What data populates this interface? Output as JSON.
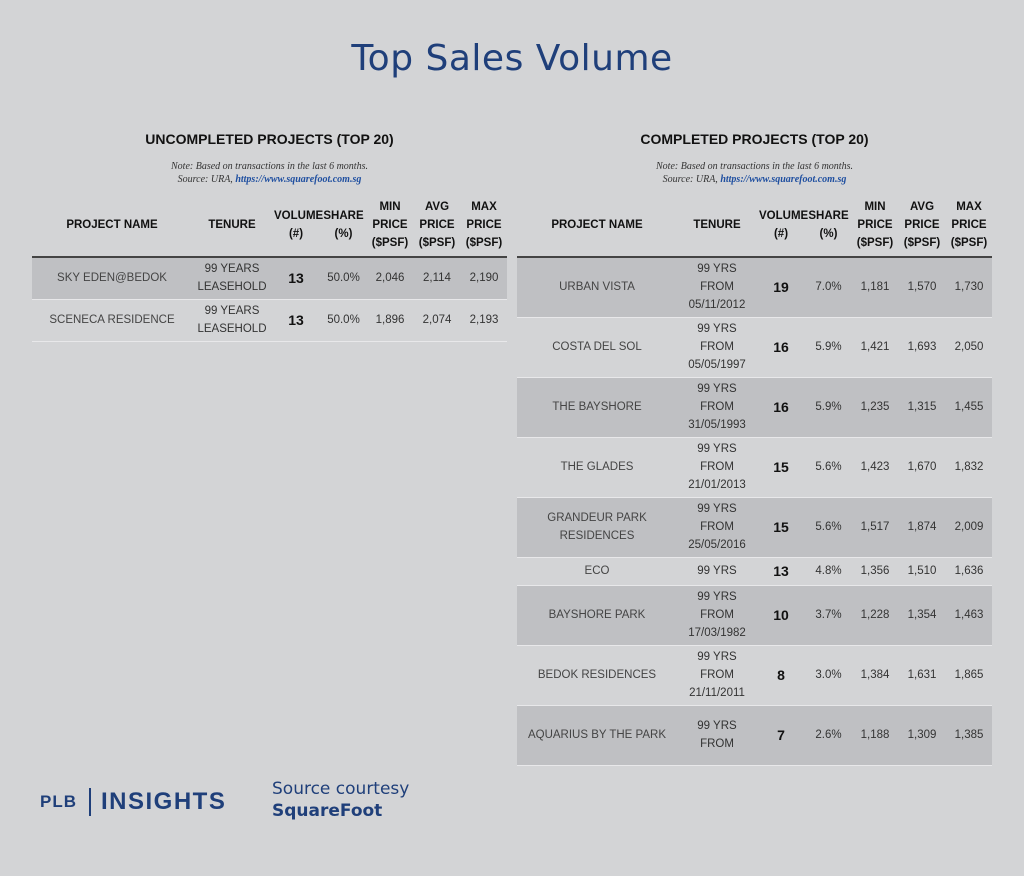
{
  "title": "Top Sales Volume",
  "columns": [
    "PROJECT NAME",
    "TENURE",
    "VOLUME (#)",
    "SHARE (%)",
    "MIN PRICE ($PSF)",
    "AVG PRICE ($PSF)",
    "MAX PRICE ($PSF)"
  ],
  "uncompleted": {
    "title": "UNCOMPLETED PROJECTS (TOP 20)",
    "note": "Note: Based on transactions in the last 6 months.",
    "source_prefix": "Source: URA, ",
    "source_link": "https://www.squarefoot.com.sg",
    "rows": [
      {
        "name": "SKY EDEN@BEDOK",
        "tenure": "99 YEARS LEASEHOLD",
        "volume": "13",
        "share": "50.0%",
        "min": "2,046",
        "avg": "2,114",
        "max": "2,190"
      },
      {
        "name": "SCENECA RESIDENCE",
        "tenure": "99 YEARS LEASEHOLD",
        "volume": "13",
        "share": "50.0%",
        "min": "1,896",
        "avg": "2,074",
        "max": "2,193"
      }
    ]
  },
  "completed": {
    "title": "COMPLETED PROJECTS (TOP 20)",
    "note": "Note: Based on transactions in the last 6 months.",
    "source_prefix": "Source: URA, ",
    "source_link": "https://www.squarefoot.com.sg",
    "rows": [
      {
        "name": "URBAN VISTA",
        "tenure": "99 YRS FROM 05/11/2012",
        "volume": "19",
        "share": "7.0%",
        "min": "1,181",
        "avg": "1,570",
        "max": "1,730"
      },
      {
        "name": "COSTA DEL SOL",
        "tenure": "99 YRS FROM 05/05/1997",
        "volume": "16",
        "share": "5.9%",
        "min": "1,421",
        "avg": "1,693",
        "max": "2,050"
      },
      {
        "name": "THE BAYSHORE",
        "tenure": "99 YRS FROM 31/05/1993",
        "volume": "16",
        "share": "5.9%",
        "min": "1,235",
        "avg": "1,315",
        "max": "1,455"
      },
      {
        "name": "THE GLADES",
        "tenure": "99 YRS FROM 21/01/2013",
        "volume": "15",
        "share": "5.6%",
        "min": "1,423",
        "avg": "1,670",
        "max": "1,832"
      },
      {
        "name": "GRANDEUR PARK RESIDENCES",
        "tenure": "99 YRS FROM 25/05/2016",
        "volume": "15",
        "share": "5.6%",
        "min": "1,517",
        "avg": "1,874",
        "max": "2,009"
      },
      {
        "name": "ECO",
        "tenure": "99 YRS",
        "volume": "13",
        "share": "4.8%",
        "min": "1,356",
        "avg": "1,510",
        "max": "1,636"
      },
      {
        "name": "BAYSHORE PARK",
        "tenure": "99 YRS FROM 17/03/1982",
        "volume": "10",
        "share": "3.7%",
        "min": "1,228",
        "avg": "1,354",
        "max": "1,463"
      },
      {
        "name": "BEDOK RESIDENCES",
        "tenure": "99 YRS FROM 21/11/2011",
        "volume": "8",
        "share": "3.0%",
        "min": "1,384",
        "avg": "1,631",
        "max": "1,865"
      },
      {
        "name": "AQUARIUS BY THE PARK",
        "tenure": "99 YRS FROM",
        "volume": "7",
        "share": "2.6%",
        "min": "1,188",
        "avg": "1,309",
        "max": "1,385"
      }
    ]
  },
  "footer": {
    "logo_left": "PLB",
    "logo_right": "INSIGHTS",
    "source_line1": "Source courtesy",
    "source_line2": "SquareFoot"
  }
}
